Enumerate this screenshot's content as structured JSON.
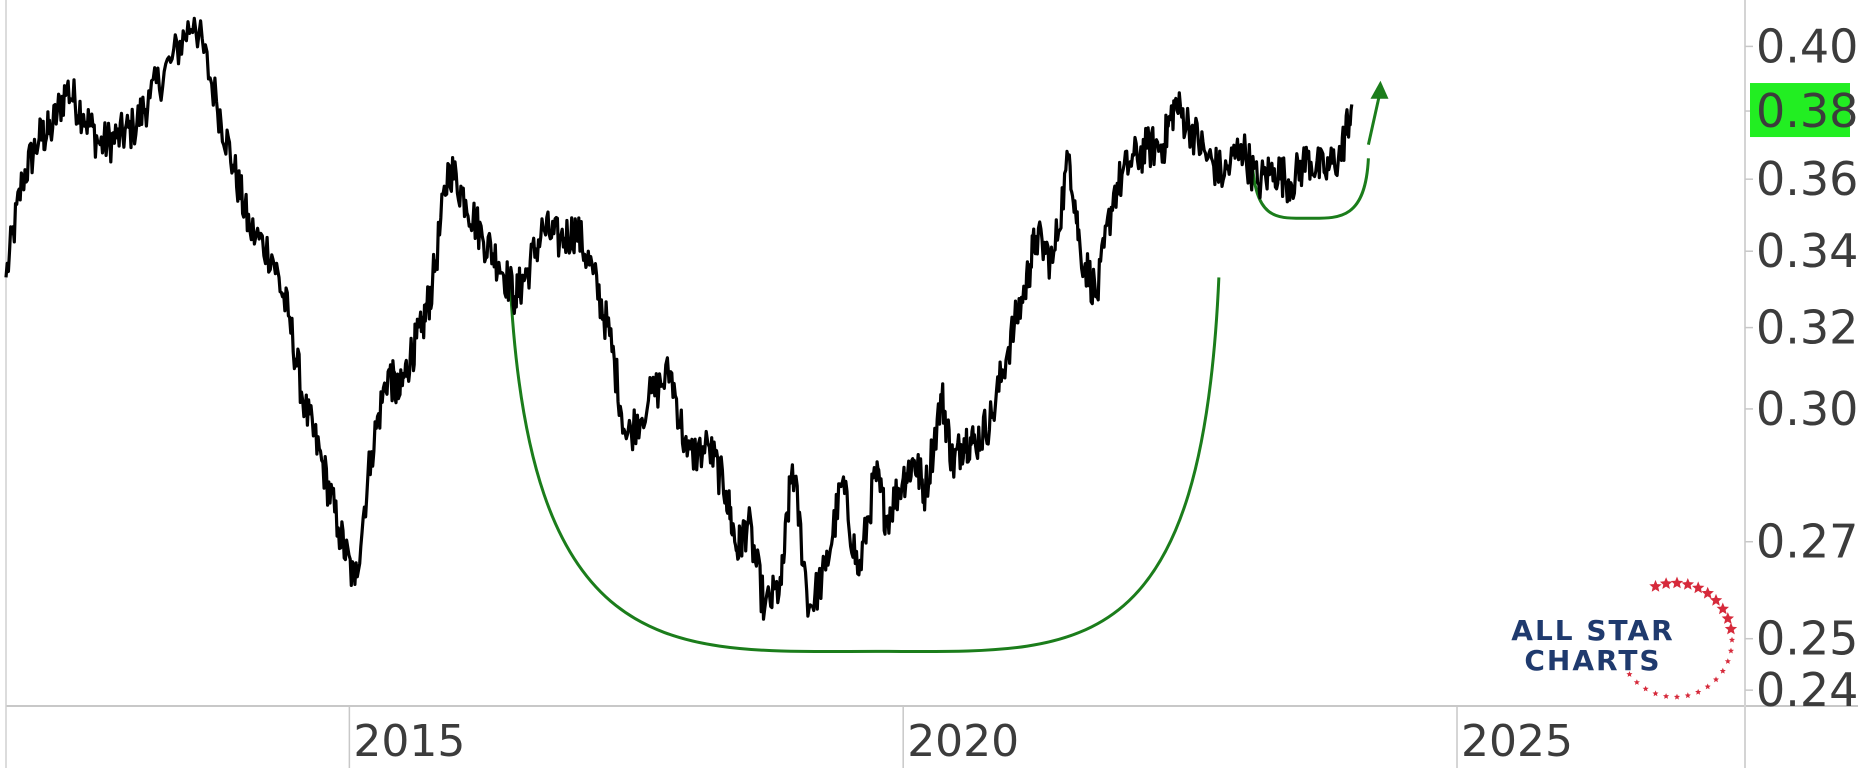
{
  "chart_data": {
    "type": "line",
    "title": "",
    "xlabel": "",
    "ylabel": "",
    "y_scale": "log",
    "ylim": [
      0.237,
      0.415
    ],
    "xlim": [
      2011.9,
      2027.6
    ],
    "grid": false,
    "legend": "none",
    "y_ticks": [
      0.24,
      0.25,
      0.27,
      0.3,
      0.32,
      0.34,
      0.36,
      0.38,
      0.4
    ],
    "y_tick_labels": [
      "0.24",
      "0.25",
      "0.27",
      "0.30",
      "0.32",
      "0.34",
      "0.36",
      "0.38",
      "0.40"
    ],
    "x_ticks": [
      2015,
      2020,
      2025
    ],
    "x_tick_labels": [
      "2015",
      "2020",
      "2025"
    ],
    "last_value": 0.38,
    "last_value_label": "0.38",
    "series": [
      {
        "x": [
          2011.9,
          2012.05,
          2012.2,
          2012.3,
          2012.45,
          2012.6,
          2012.75,
          2012.9,
          2013.05,
          2013.2,
          2013.4,
          2013.6,
          2013.8,
          2013.95,
          2014.1,
          2014.3,
          2014.45,
          2014.6,
          2014.75,
          2014.9,
          2015.05,
          2015.2,
          2015.35,
          2015.45,
          2015.55,
          2015.65,
          2015.75,
          2015.9,
          2016.05,
          2016.2,
          2016.35,
          2016.5,
          2016.6,
          2016.75,
          2016.9,
          2017.05,
          2017.2,
          2017.35,
          2017.5,
          2017.7,
          2017.9,
          2018.05,
          2018.25,
          2018.4,
          2018.5,
          2018.6,
          2018.75,
          2018.9,
          2019.0,
          2019.15,
          2019.3,
          2019.45,
          2019.6,
          2019.75,
          2019.85,
          2020.0,
          2020.1,
          2020.2,
          2020.35,
          2020.45,
          2020.55,
          2020.65,
          2020.8,
          2020.95,
          2021.1,
          2021.2,
          2021.35,
          2021.5,
          2021.6,
          2021.75,
          2021.9,
          2022.05,
          2022.2,
          2022.35,
          2022.45,
          2022.6,
          2022.75,
          2022.9,
          2023.05,
          2023.2,
          2023.35,
          2023.5,
          2023.65,
          2023.8,
          2023.95,
          2024.05
        ],
        "y": [
          0.333,
          0.36,
          0.372,
          0.374,
          0.387,
          0.379,
          0.37,
          0.372,
          0.375,
          0.384,
          0.396,
          0.409,
          0.383,
          0.364,
          0.346,
          0.339,
          0.323,
          0.3,
          0.288,
          0.273,
          0.261,
          0.29,
          0.309,
          0.303,
          0.313,
          0.319,
          0.331,
          0.364,
          0.354,
          0.344,
          0.337,
          0.328,
          0.334,
          0.346,
          0.343,
          0.346,
          0.334,
          0.318,
          0.293,
          0.302,
          0.309,
          0.289,
          0.291,
          0.281,
          0.268,
          0.274,
          0.256,
          0.261,
          0.287,
          0.256,
          0.264,
          0.283,
          0.263,
          0.285,
          0.275,
          0.284,
          0.288,
          0.281,
          0.303,
          0.287,
          0.293,
          0.292,
          0.298,
          0.315,
          0.33,
          0.344,
          0.337,
          0.367,
          0.34,
          0.328,
          0.356,
          0.365,
          0.369,
          0.37,
          0.382,
          0.375,
          0.366,
          0.361,
          0.37,
          0.359,
          0.363,
          0.359,
          0.366,
          0.362,
          0.367,
          0.382
        ]
      }
    ],
    "annotations": [
      {
        "type": "arc",
        "description": "large rounding bottom",
        "from": [
          2016.45,
          0.333
        ],
        "low": [
          2019.75,
          0.2475
        ],
        "to": [
          2022.85,
          0.333
        ]
      },
      {
        "type": "arc",
        "description": "small rounding bottom",
        "from": [
          2023.15,
          0.366
        ],
        "low": [
          2023.65,
          0.349
        ],
        "to": [
          2024.2,
          0.366
        ]
      },
      {
        "type": "arrow",
        "description": "upward breakout arrow",
        "from": [
          2024.2,
          0.37
        ],
        "to": [
          2024.3,
          0.388
        ]
      }
    ]
  },
  "logo": {
    "line1": "ALL STAR",
    "line2": "CHARTS"
  },
  "colors": {
    "price_line": "#000000",
    "annotation": "#1b7d1b",
    "last_value_badge": "#22ee22",
    "axis_text": "#3c3c3c",
    "axis_line": "#c8c8c8",
    "logo_text": "#1f3a6e",
    "logo_stars": "#d62a3b"
  }
}
